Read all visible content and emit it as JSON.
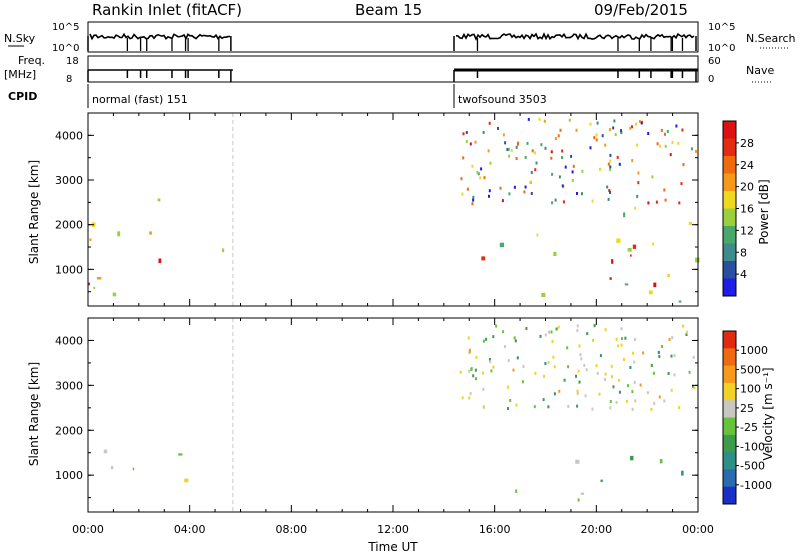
{
  "header": {
    "title": "Rankin Inlet (fitACF)",
    "beam": "Beam 15",
    "date": "09/Feb/2015"
  },
  "top_panels": {
    "nsky_label": "N.Sky",
    "nsky_ticks": [
      "10^5",
      "10^0"
    ],
    "nsearch_label": "N.Search",
    "nsearch_ticks": [
      "10^5",
      "10^0"
    ],
    "freq_label": "Freq.",
    "freq_unit": "[MHz]",
    "freq_ticks": [
      "18",
      "8"
    ],
    "nave_label": "Nave",
    "nave_ticks": [
      "60",
      "0"
    ],
    "cpid_label": "CPID",
    "cpid_segments": [
      {
        "name": "normal (fast) 151",
        "start_hour": 0.0,
        "end_hour": 5.7
      },
      {
        "name": "twofsound 3503",
        "start_hour": 14.4,
        "end_hour": 24.0
      }
    ]
  },
  "chart_data": [
    {
      "type": "heatmap",
      "title": "",
      "xlabel": "Time UT",
      "ylabel": "Slant Range [km]",
      "xlim": [
        0,
        24
      ],
      "ylim": [
        180,
        4500
      ],
      "x_ticks": [
        "00:00",
        "04:00",
        "08:00",
        "12:00",
        "16:00",
        "20:00",
        "00:00"
      ],
      "y_ticks": [
        "1000",
        "2000",
        "3000",
        "4000"
      ],
      "colorbar": {
        "label": "Power [dB]",
        "ticks": [
          "28",
          "24",
          "20",
          "16",
          "12",
          "8",
          "4"
        ],
        "range": [
          0,
          30
        ]
      },
      "data_gaps": [
        [
          5.7,
          14.4
        ]
      ],
      "echo_regions": [
        {
          "t_start": 0.0,
          "t_end": 5.7,
          "range_start": 300,
          "range_end": 2600,
          "value": 16
        },
        {
          "t_start": 0.0,
          "t_end": 3.0,
          "range_start": 700,
          "range_end": 1400,
          "value": 27
        },
        {
          "t_start": 14.4,
          "t_end": 24.0,
          "range_start": 300,
          "range_end": 2500,
          "value": 14
        },
        {
          "t_start": 15.0,
          "t_end": 24.0,
          "range_start": 600,
          "range_end": 1600,
          "value": 26
        }
      ]
    },
    {
      "type": "heatmap",
      "title": "",
      "xlabel": "Time UT",
      "ylabel": "Slant Range [km]",
      "xlim": [
        0,
        24
      ],
      "ylim": [
        180,
        4500
      ],
      "x_ticks": [
        "00:00",
        "04:00",
        "08:00",
        "12:00",
        "16:00",
        "20:00",
        "00:00"
      ],
      "y_ticks": [
        "1000",
        "2000",
        "3000",
        "4000"
      ],
      "colorbar": {
        "label": "Velocity [m s⁻¹]",
        "ticks": [
          "1000",
          "500",
          "100",
          "25",
          "-25",
          "-100",
          "-500",
          "-1000"
        ],
        "range": [
          -1000,
          1000
        ]
      },
      "data_gaps": [
        [
          5.7,
          14.4
        ]
      ],
      "echo_regions": [
        {
          "t_start": 0.0,
          "t_end": 5.7,
          "range_start": 700,
          "range_end": 1900,
          "value": 80
        },
        {
          "t_start": 15.5,
          "t_end": 19.5,
          "range_start": 400,
          "range_end": 1800,
          "value": 0
        },
        {
          "t_start": 19.5,
          "t_end": 24.0,
          "range_start": 400,
          "range_end": 1700,
          "value": -250
        }
      ]
    }
  ],
  "colors": {
    "power_scale": [
      "#1e1ee6",
      "#2a4fa0",
      "#3f8a8a",
      "#4aa86a",
      "#9ad03c",
      "#f0d820",
      "#f59a18",
      "#f06a10",
      "#e42a10",
      "#dd1111"
    ],
    "velocity_scale": [
      "#1a2fc8",
      "#2a6ab0",
      "#2e8f86",
      "#3c9c4a",
      "#66c43c",
      "#c8c8c0",
      "#f2d226",
      "#f59a1a",
      "#f06a12",
      "#e02a12"
    ]
  }
}
